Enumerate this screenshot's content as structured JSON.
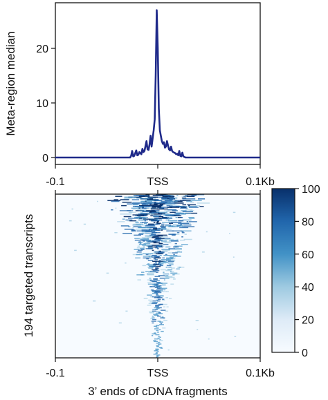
{
  "chart_data": [
    {
      "type": "line",
      "title": "",
      "xlabel": "",
      "ylabel": "Meta-region median",
      "xlim": [
        -0.1,
        0.1
      ],
      "ylim": [
        0,
        28
      ],
      "x_ticks": [
        {
          "value": -0.1,
          "label": "-0.1"
        },
        {
          "value": 0,
          "label": "TSS"
        },
        {
          "value": 0.1,
          "label": "0.1Kb"
        }
      ],
      "y_ticks": [
        {
          "value": 0,
          "label": "0"
        },
        {
          "value": 10,
          "label": "10"
        },
        {
          "value": 20,
          "label": "20"
        }
      ],
      "grid": false,
      "color": "#1f2a8a",
      "series": [
        {
          "x": [
            -0.1,
            -0.027,
            -0.026,
            -0.025,
            -0.024,
            -0.023,
            -0.021,
            -0.02,
            -0.019,
            -0.018,
            -0.016,
            -0.015,
            -0.014,
            -0.013,
            -0.011,
            -0.01,
            -0.009,
            -0.008,
            -0.007,
            -0.006,
            -0.005,
            -0.004,
            -0.003,
            -0.002,
            -0.001,
            0,
            0.001,
            0.002,
            0.003,
            0.004,
            0.005,
            0.006,
            0.007,
            0.008,
            0.009,
            0.01,
            0.011,
            0.012,
            0.013,
            0.014,
            0.015,
            0.016,
            0.017,
            0.018,
            0.019,
            0.02,
            0.021,
            0.022,
            0.023,
            0.024,
            0.025,
            0.026,
            0.027,
            0.1
          ],
          "y": [
            0,
            0,
            0.3,
            1.2,
            0.2,
            0.3,
            1.3,
            0.4,
            0.5,
            1.0,
            0.6,
            1.6,
            1.0,
            1.2,
            3.0,
            1.5,
            1.4,
            2.5,
            4.0,
            2.0,
            3.5,
            5.0,
            7.0,
            15.0,
            27.0,
            20.0,
            9.0,
            5.0,
            4.0,
            3.0,
            2.5,
            2.8,
            1.8,
            2.0,
            3.0,
            2.2,
            1.5,
            1.3,
            2.0,
            1.2,
            1.0,
            0.9,
            0.8,
            0.6,
            0.7,
            0.4,
            1.2,
            0.3,
            0.2,
            0.9,
            0.2,
            0.1,
            0,
            0
          ]
        }
      ]
    },
    {
      "type": "heatmap",
      "title": "",
      "xlabel": "3’ ends of cDNA fragments",
      "ylabel": "194 targeted transcripts",
      "xlim": [
        -0.1,
        0.1
      ],
      "rows": 194,
      "x_ticks": [
        {
          "value": -0.1,
          "label": "-0.1"
        },
        {
          "value": 0,
          "label": "TSS"
        },
        {
          "value": 0.1,
          "label": "0.1Kb"
        }
      ],
      "colorbar": {
        "min": 0,
        "max": 100,
        "ticks": [
          {
            "value": 0,
            "label": "0"
          },
          {
            "value": 20,
            "label": "20"
          },
          {
            "value": 40,
            "label": "40"
          },
          {
            "value": 60,
            "label": "60"
          },
          {
            "value": 80,
            "label": "80"
          },
          {
            "value": 100,
            "label": "100"
          }
        ],
        "color_low": "#f7fbff",
        "color_high": "#08306b"
      }
    }
  ]
}
